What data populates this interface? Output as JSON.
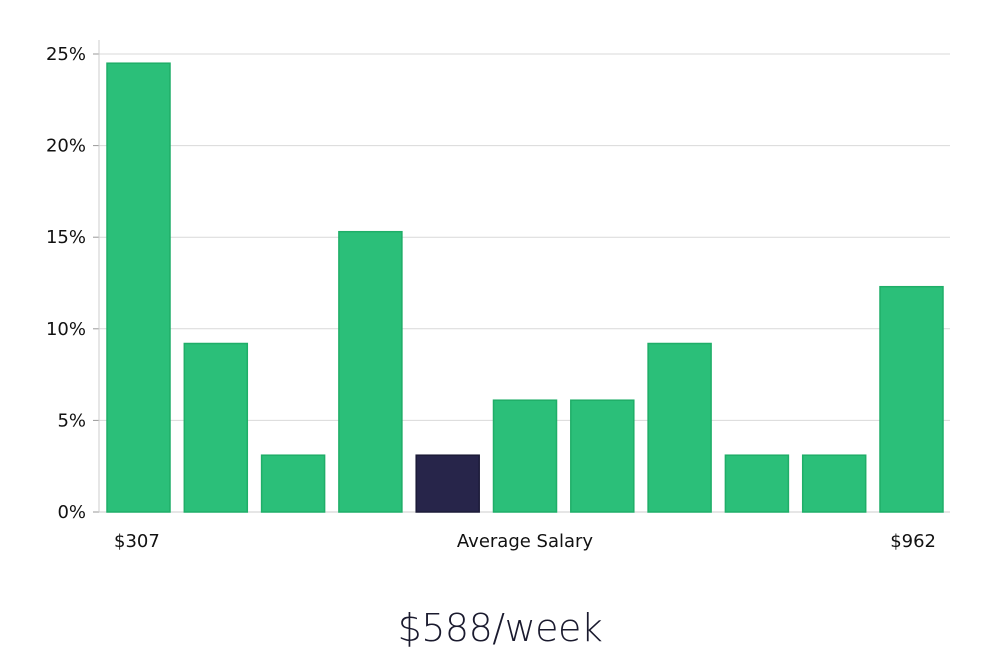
{
  "chart_data": {
    "type": "bar",
    "title": "",
    "xlabel": "Average Salary",
    "ylabel": "",
    "x_range_labels": {
      "min": "$307",
      "max": "$962"
    },
    "values": [
      24.5,
      9.2,
      3.1,
      15.3,
      3.1,
      6.1,
      6.1,
      9.2,
      3.1,
      3.1,
      12.3
    ],
    "highlight_index": 4,
    "ylim": [
      0,
      25.5
    ],
    "yticks": [
      0,
      5,
      10,
      15,
      20,
      25
    ],
    "ytick_labels": [
      "0%",
      "5%",
      "10%",
      "15%",
      "20%",
      "25%"
    ],
    "grid": true,
    "legend": "none",
    "colors": {
      "bar": "#2bbf79",
      "bar_edge": "#1fae68",
      "highlight": "#27254a",
      "grid": "#d9d9d9",
      "axis": "#cccccc"
    }
  },
  "summary": {
    "average_label": "$588/week"
  }
}
